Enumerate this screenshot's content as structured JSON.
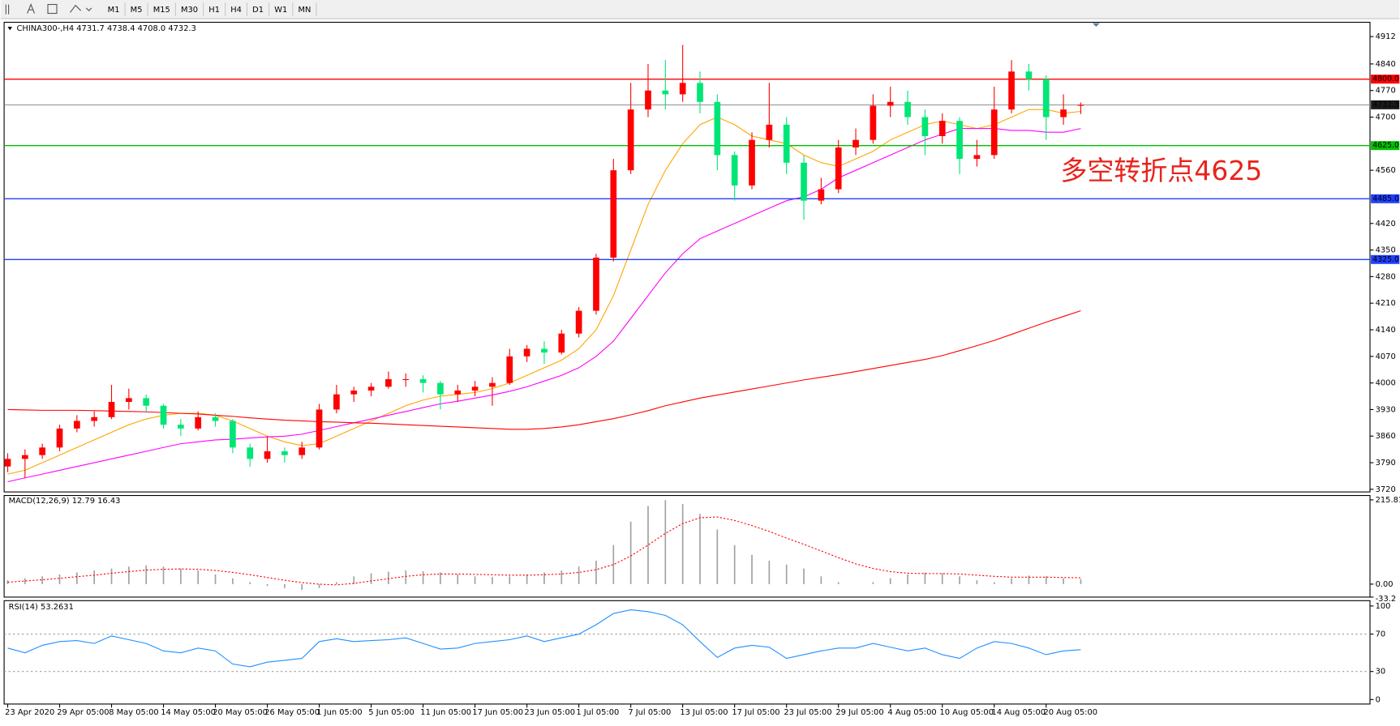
{
  "toolbar": {
    "timeframes": [
      "M1",
      "M5",
      "M15",
      "M30",
      "H1",
      "H4",
      "D1",
      "W1",
      "MN"
    ]
  },
  "chart_data": [
    {
      "type": "candlestick",
      "title": "CHINA300-,H4  4731.7 4738.4 4708.0 4732.3",
      "annotation": "多空转折点4625",
      "categories": [
        "23 Apr 2020",
        null,
        null,
        "29 Apr 05:00",
        null,
        null,
        "8 May 05:00",
        null,
        null,
        "14 May 05:00",
        null,
        null,
        "20 May 05:00",
        null,
        null,
        "26 May 05:00",
        null,
        null,
        "1 Jun 05:00",
        null,
        null,
        "5 Jun 05:00",
        null,
        null,
        "11 Jun 05:00",
        null,
        null,
        "17 Jun 05:00",
        null,
        null,
        "23 Jun 05:00",
        null,
        null,
        "1 Jul 05:00",
        null,
        null,
        "7 Jul 05:00",
        null,
        null,
        "13 Jul 05:00",
        null,
        null,
        "17 Jul 05:00",
        null,
        null,
        "23 Jul 05:00",
        null,
        null,
        "29 Jul 05:00",
        null,
        null,
        "4 Aug 05:00",
        null,
        null,
        "10 Aug 05:00",
        null,
        null,
        "14 Aug 05:00",
        null,
        null,
        "20 Aug 05:00",
        null,
        null
      ],
      "candles": [
        [
          3780,
          3815,
          3765,
          3800
        ],
        [
          3800,
          3825,
          3750,
          3810
        ],
        [
          3810,
          3840,
          3800,
          3830
        ],
        [
          3830,
          3890,
          3820,
          3880
        ],
        [
          3880,
          3915,
          3870,
          3900
        ],
        [
          3900,
          3925,
          3885,
          3910
        ],
        [
          3910,
          3995,
          3905,
          3950
        ],
        [
          3950,
          3985,
          3930,
          3960
        ],
        [
          3960,
          3970,
          3925,
          3940
        ],
        [
          3940,
          3945,
          3880,
          3890
        ],
        [
          3890,
          3905,
          3860,
          3880
        ],
        [
          3880,
          3925,
          3875,
          3910
        ],
        [
          3910,
          3920,
          3885,
          3900
        ],
        [
          3900,
          3905,
          3815,
          3830
        ],
        [
          3830,
          3840,
          3780,
          3800
        ],
        [
          3800,
          3860,
          3790,
          3820
        ],
        [
          3820,
          3830,
          3790,
          3810
        ],
        [
          3810,
          3845,
          3800,
          3830
        ],
        [
          3830,
          3945,
          3825,
          3930
        ],
        [
          3930,
          3995,
          3920,
          3970
        ],
        [
          3970,
          3990,
          3950,
          3980
        ],
        [
          3980,
          4000,
          3965,
          3990
        ],
        [
          3990,
          4030,
          3985,
          4010
        ],
        [
          4010,
          4025,
          3990,
          4010
        ],
        [
          4010,
          4020,
          3975,
          4000
        ],
        [
          4000,
          4005,
          3930,
          3970
        ],
        [
          3970,
          3995,
          3950,
          3980
        ],
        [
          3980,
          4005,
          3965,
          3990
        ],
        [
          3990,
          4015,
          3940,
          4000
        ],
        [
          4000,
          4090,
          3995,
          4070
        ],
        [
          4070,
          4100,
          4055,
          4090
        ],
        [
          4090,
          4110,
          4050,
          4080
        ],
        [
          4080,
          4140,
          4075,
          4130
        ],
        [
          4130,
          4200,
          4120,
          4190
        ],
        [
          4190,
          4340,
          4180,
          4330
        ],
        [
          4330,
          4590,
          4320,
          4560
        ],
        [
          4560,
          4790,
          4550,
          4720
        ],
        [
          4720,
          4840,
          4700,
          4770
        ],
        [
          4770,
          4850,
          4720,
          4760
        ],
        [
          4760,
          4890,
          4740,
          4790
        ],
        [
          4790,
          4820,
          4710,
          4740
        ],
        [
          4740,
          4760,
          4560,
          4600
        ],
        [
          4600,
          4610,
          4480,
          4520
        ],
        [
          4520,
          4660,
          4510,
          4640
        ],
        [
          4640,
          4790,
          4620,
          4680
        ],
        [
          4680,
          4700,
          4550,
          4580
        ],
        [
          4580,
          4600,
          4430,
          4480
        ],
        [
          4480,
          4540,
          4470,
          4510
        ],
        [
          4510,
          4640,
          4500,
          4620
        ],
        [
          4620,
          4670,
          4600,
          4640
        ],
        [
          4640,
          4760,
          4630,
          4730
        ],
        [
          4730,
          4780,
          4700,
          4740
        ],
        [
          4740,
          4770,
          4680,
          4700
        ],
        [
          4700,
          4720,
          4600,
          4650
        ],
        [
          4650,
          4710,
          4630,
          4690
        ],
        [
          4690,
          4700,
          4550,
          4590
        ],
        [
          4590,
          4640,
          4570,
          4600
        ],
        [
          4600,
          4780,
          4590,
          4720
        ],
        [
          4720,
          4850,
          4710,
          4820
        ],
        [
          4820,
          4840,
          4770,
          4800
        ],
        [
          4800,
          4810,
          4640,
          4700
        ],
        [
          4700,
          4760,
          4680,
          4720
        ],
        [
          4731.7,
          4738.4,
          4708,
          4732.3
        ]
      ],
      "up_color": "#ff0000",
      "down_color": "#00e676",
      "lines": [
        {
          "color": "#ffa500",
          "values": [
            3760,
            3770,
            3790,
            3810,
            3830,
            3850,
            3870,
            3890,
            3905,
            3915,
            3920,
            3920,
            3915,
            3900,
            3880,
            3860,
            3845,
            3835,
            3840,
            3860,
            3880,
            3900,
            3920,
            3940,
            3955,
            3965,
            3970,
            3975,
            3985,
            4000,
            4020,
            4040,
            4060,
            4090,
            4140,
            4230,
            4350,
            4470,
            4560,
            4630,
            4680,
            4700,
            4680,
            4650,
            4640,
            4630,
            4600,
            4580,
            4570,
            4590,
            4610,
            4640,
            4660,
            4680,
            4690,
            4680,
            4670,
            4680,
            4700,
            4720,
            4720,
            4710,
            4715
          ]
        },
        {
          "color": "#ff00ff",
          "values": [
            3740,
            3750,
            3760,
            3770,
            3780,
            3790,
            3800,
            3810,
            3820,
            3830,
            3840,
            3845,
            3850,
            3852,
            3855,
            3858,
            3860,
            3865,
            3875,
            3885,
            3895,
            3905,
            3915,
            3925,
            3935,
            3945,
            3952,
            3960,
            3968,
            3978,
            3990,
            4005,
            4020,
            4040,
            4070,
            4110,
            4170,
            4230,
            4290,
            4340,
            4380,
            4400,
            4420,
            4440,
            4460,
            4480,
            4490,
            4510,
            4540,
            4560,
            4580,
            4600,
            4620,
            4640,
            4655,
            4670,
            4670,
            4670,
            4665,
            4665,
            4660,
            4660,
            4670
          ]
        },
        {
          "color": "#ff0000",
          "values": [
            3930,
            3929,
            3928,
            3928,
            3928,
            3927,
            3926,
            3925,
            3924,
            3922,
            3920,
            3918,
            3915,
            3912,
            3908,
            3905,
            3902,
            3900,
            3898,
            3897,
            3895,
            3894,
            3892,
            3890,
            3888,
            3886,
            3884,
            3882,
            3880,
            3878,
            3878,
            3880,
            3884,
            3890,
            3898,
            3906,
            3916,
            3927,
            3940,
            3950,
            3960,
            3968,
            3976,
            3984,
            3992,
            4000,
            4008,
            4015,
            4022,
            4030,
            4038,
            4046,
            4054,
            4062,
            4072,
            4085,
            4098,
            4112,
            4128,
            4144,
            4160,
            4175,
            4190
          ]
        }
      ],
      "levels": [
        {
          "value": 4800,
          "label": "4800.0",
          "color": "#ff0000"
        },
        {
          "value": 4732.3,
          "label": "4732.3",
          "color": "#808080"
        },
        {
          "value": 4625,
          "label": "4625.0",
          "color": "#00c000"
        },
        {
          "value": 4485,
          "label": "4485.0",
          "color": "#2040ff"
        },
        {
          "value": 4325,
          "label": "4325.0",
          "color": "#2040ff"
        }
      ],
      "ylim": [
        3713,
        4945
      ],
      "yticks": [
        3720,
        3790,
        3860,
        3930,
        4000,
        4070,
        4140,
        4210,
        4280,
        4350,
        4420,
        4560,
        4700,
        4770,
        4840,
        4912
      ]
    },
    {
      "type": "macd",
      "title": "MACD(12,26,9) 12.79 16.43",
      "histogram": [
        10,
        15,
        20,
        25,
        30,
        35,
        40,
        45,
        48,
        45,
        40,
        35,
        25,
        15,
        5,
        -5,
        -10,
        -15,
        -10,
        5,
        20,
        28,
        32,
        35,
        33,
        30,
        25,
        20,
        18,
        20,
        25,
        30,
        35,
        45,
        60,
        100,
        160,
        200,
        215,
        205,
        180,
        140,
        100,
        75,
        60,
        50,
        40,
        20,
        5,
        0,
        5,
        15,
        25,
        30,
        28,
        20,
        10,
        5,
        15,
        22,
        20,
        15,
        12.79
      ],
      "signal": [
        5,
        8,
        11,
        15,
        19,
        23,
        28,
        32,
        36,
        38,
        39,
        38,
        35,
        30,
        24,
        17,
        10,
        4,
        0,
        -2,
        2,
        8,
        14,
        20,
        24,
        26,
        26,
        25,
        24,
        23,
        23,
        24,
        26,
        30,
        37,
        50,
        72,
        100,
        130,
        155,
        170,
        172,
        163,
        150,
        135,
        118,
        102,
        85,
        68,
        52,
        40,
        32,
        28,
        27,
        27,
        26,
        23,
        20,
        18,
        18,
        18,
        17,
        16.43
      ],
      "histogram_color": "#a0a0a0",
      "signal_color": "#ff0000",
      "ylim": [
        -33.2,
        227
      ],
      "yticks": [
        215.81,
        {
          "value": 0,
          "label": "0.00"
        },
        -33.2
      ]
    },
    {
      "type": "line",
      "title": "RSI(14) 53.2631",
      "values": [
        55,
        50,
        58,
        62,
        63,
        60,
        68,
        64,
        60,
        52,
        50,
        55,
        52,
        38,
        35,
        40,
        42,
        44,
        62,
        65,
        62,
        63,
        64,
        66,
        60,
        54,
        55,
        60,
        62,
        64,
        68,
        62,
        66,
        70,
        80,
        92,
        96,
        94,
        90,
        80,
        62,
        45,
        55,
        58,
        56,
        44,
        48,
        52,
        55,
        55,
        60,
        56,
        52,
        55,
        48,
        44,
        55,
        62,
        60,
        55,
        48,
        52,
        53.2631
      ],
      "color": "#1e90ff",
      "ylim": [
        -4.8,
        105.7
      ],
      "yticks": [
        100,
        70,
        30,
        0
      ]
    }
  ]
}
